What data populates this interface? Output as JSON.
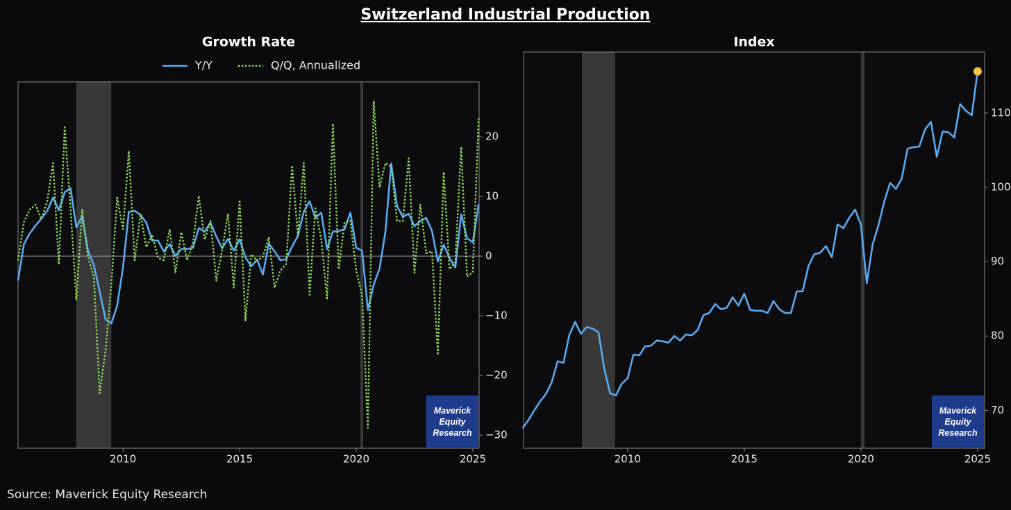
{
  "title": "Switzerland Industrial Production",
  "source": "Source: Maverick Equity Research",
  "watermark": "Maverick Equity Research",
  "chart_data": [
    {
      "type": "line",
      "title": "Growth Rate",
      "legend": "top",
      "zero_line": true,
      "y_axis_side": "right",
      "xlim": [
        2005.5,
        2025.27
      ],
      "xticks": [
        2010,
        2015,
        2020,
        2025
      ],
      "ylim": [
        -32.2,
        29.2
      ],
      "yticks": [
        20,
        10,
        0,
        {
          "value": -10,
          "label": "−10"
        },
        {
          "value": -20,
          "label": "−20"
        },
        {
          "value": -30,
          "label": "−30"
        }
      ],
      "shaded_periods": [
        [
          2008.0,
          2009.5
        ],
        [
          2020.18,
          2020.3
        ]
      ],
      "x": [
        2005.5,
        2005.75,
        2006,
        2006.25,
        2006.5,
        2006.75,
        2007,
        2007.25,
        2007.5,
        2007.75,
        2008,
        2008.25,
        2008.5,
        2008.75,
        2009,
        2009.25,
        2009.5,
        2009.75,
        2010,
        2010.25,
        2010.5,
        2010.75,
        2011,
        2011.25,
        2011.5,
        2011.75,
        2012,
        2012.25,
        2012.5,
        2012.75,
        2013,
        2013.25,
        2013.5,
        2013.75,
        2014,
        2014.25,
        2014.5,
        2014.75,
        2015,
        2015.25,
        2015.5,
        2015.75,
        2016,
        2016.25,
        2016.5,
        2016.75,
        2017,
        2017.25,
        2017.5,
        2017.75,
        2018,
        2018.25,
        2018.5,
        2018.75,
        2019,
        2019.25,
        2019.5,
        2019.75,
        2020,
        2020.25,
        2020.5,
        2020.75,
        2021,
        2021.25,
        2021.5,
        2021.75,
        2022,
        2022.25,
        2022.5,
        2022.75,
        2023,
        2023.25,
        2023.5,
        2023.75,
        2024,
        2024.25,
        2024.5,
        2024.75,
        2025,
        2025.25
      ],
      "series": [
        {
          "name": "Y/Y",
          "color": "#5aaaf0",
          "style": "solid",
          "values": [
            -4.1,
            2.0,
            3.8,
            5.1,
            6.3,
            7.6,
            9.8,
            7.7,
            10.7,
            11.4,
            4.8,
            6.7,
            0.9,
            -1.5,
            -5.9,
            -10.6,
            -11.3,
            -8.3,
            -1.9,
            7.4,
            7.6,
            6.9,
            5.6,
            2.6,
            2.6,
            0.8,
            2.0,
            0,
            1.2,
            1.2,
            1.4,
            4.7,
            4.1,
            5.6,
            3.3,
            1.3,
            2.9,
            0.9,
            2.8,
            -0.2,
            -1.7,
            -0.6,
            -3.1,
            2.1,
            0.8,
            -0.7,
            -0.5,
            1.6,
            3.4,
            7.4,
            9.2,
            6.4,
            7.3,
            1.2,
            4.1,
            4.2,
            4.5,
            7.3,
            1.4,
            0.9,
            -9.0,
            -4.8,
            -2.1,
            4.0,
            15.5,
            8.4,
            6.6,
            7.1,
            5.0,
            5.9,
            6.4,
            4.2,
            -0.9,
            1.9,
            -0.3,
            -1.9,
            7.0,
            3.0,
            2.3,
            8.7
          ]
        },
        {
          "name": "Q/Q, Annualized",
          "color": "#8fdc5a",
          "style": "dotted",
          "values": [
            -0.7,
            5.7,
            7.8,
            8.6,
            6.2,
            9.2,
            15.6,
            -1.4,
            21.6,
            8.0,
            -7.3,
            7.8,
            -0.2,
            -3.4,
            -23.0,
            -15.8,
            -4.8,
            9.8,
            4.5,
            17.6,
            -0.7,
            7.1,
            1.5,
            3.6,
            -0.3,
            -0.7,
            4.5,
            -2.7,
            4.0,
            -0.7,
            2.2,
            10.1,
            2.8,
            5.9,
            -4.1,
            1.0,
            7.1,
            -5.3,
            9.4,
            -10.8,
            0.3,
            -0.8,
            -0.1,
            3.1,
            -5.3,
            -2.4,
            -1.3,
            15.2,
            3.4,
            15.6,
            -6.5,
            8.0,
            2.8,
            -7.1,
            22.2,
            -2.2,
            5.7,
            5.9,
            -2.4,
            -6.5,
            -28.8,
            26.0,
            11.5,
            15.6,
            15.0,
            5.9,
            5.9,
            16.4,
            -2.8,
            8.6,
            0.5,
            0.8,
            -16.6,
            14.1,
            -2.2,
            -1.0,
            18.3,
            -3.4,
            -2.7,
            23.4
          ]
        }
      ]
    },
    {
      "type": "line",
      "title": "Index",
      "y_axis_side": "right",
      "end_marker_color": "#f5c242",
      "xlim": [
        2005.54,
        2025.3
      ],
      "xticks": [
        2010,
        2015,
        2020,
        2025
      ],
      "ylim": [
        64.9,
        118.2
      ],
      "yticks": [
        70,
        80,
        90,
        100,
        110
      ],
      "shaded_periods": [
        [
          2008.04,
          2009.46
        ],
        [
          2020.0,
          2020.15
        ]
      ],
      "x": [
        2005.5,
        2005.75,
        2006,
        2006.25,
        2006.5,
        2006.75,
        2007,
        2007.25,
        2007.5,
        2007.75,
        2008,
        2008.25,
        2008.5,
        2008.75,
        2009,
        2009.25,
        2009.5,
        2009.75,
        2010,
        2010.25,
        2010.5,
        2010.75,
        2011,
        2011.25,
        2011.5,
        2011.75,
        2012,
        2012.25,
        2012.5,
        2012.75,
        2013,
        2013.25,
        2013.5,
        2013.75,
        2014,
        2014.25,
        2014.5,
        2014.75,
        2015,
        2015.25,
        2015.5,
        2015.75,
        2016,
        2016.25,
        2016.5,
        2016.75,
        2017,
        2017.25,
        2017.5,
        2017.75,
        2018,
        2018.25,
        2018.5,
        2018.75,
        2019,
        2019.25,
        2019.5,
        2019.75,
        2020,
        2020.25,
        2020.5,
        2020.75,
        2021,
        2021.25,
        2021.5,
        2021.75,
        2022,
        2022.25,
        2022.5,
        2022.75,
        2023,
        2023.25,
        2023.5,
        2023.75,
        2024,
        2024.25,
        2024.5,
        2024.75,
        2025
      ],
      "series": [
        {
          "color": "#5aaaf0",
          "style": "solid",
          "values": [
            67.6,
            68.7,
            70,
            71.2,
            72.2,
            73.8,
            76.6,
            76.4,
            80.1,
            81.9,
            80.3,
            81.2,
            81,
            80.5,
            75.6,
            72.3,
            72,
            73.6,
            74.3,
            77.5,
            77.4,
            78.6,
            78.7,
            79.4,
            79.3,
            79.1,
            80,
            79.4,
            80.2,
            80.1,
            80.8,
            82.8,
            83.1,
            84.3,
            83.6,
            83.8,
            85.2,
            84.1,
            85.7,
            83.5,
            83.4,
            83.4,
            83.1,
            84.7,
            83.6,
            83.1,
            83.1,
            86,
            86,
            89.4,
            91,
            91.2,
            92.1,
            90.6,
            95,
            94.5,
            95.9,
            97,
            95,
            87.1,
            92.3,
            94.9,
            98.1,
            100.6,
            99.8,
            101.2,
            105.2,
            105.4,
            105.5,
            107.8,
            108.8,
            104.1,
            107.5,
            107.4,
            106.7,
            111.2,
            110.3,
            109.7,
            115.6
          ]
        }
      ]
    }
  ]
}
